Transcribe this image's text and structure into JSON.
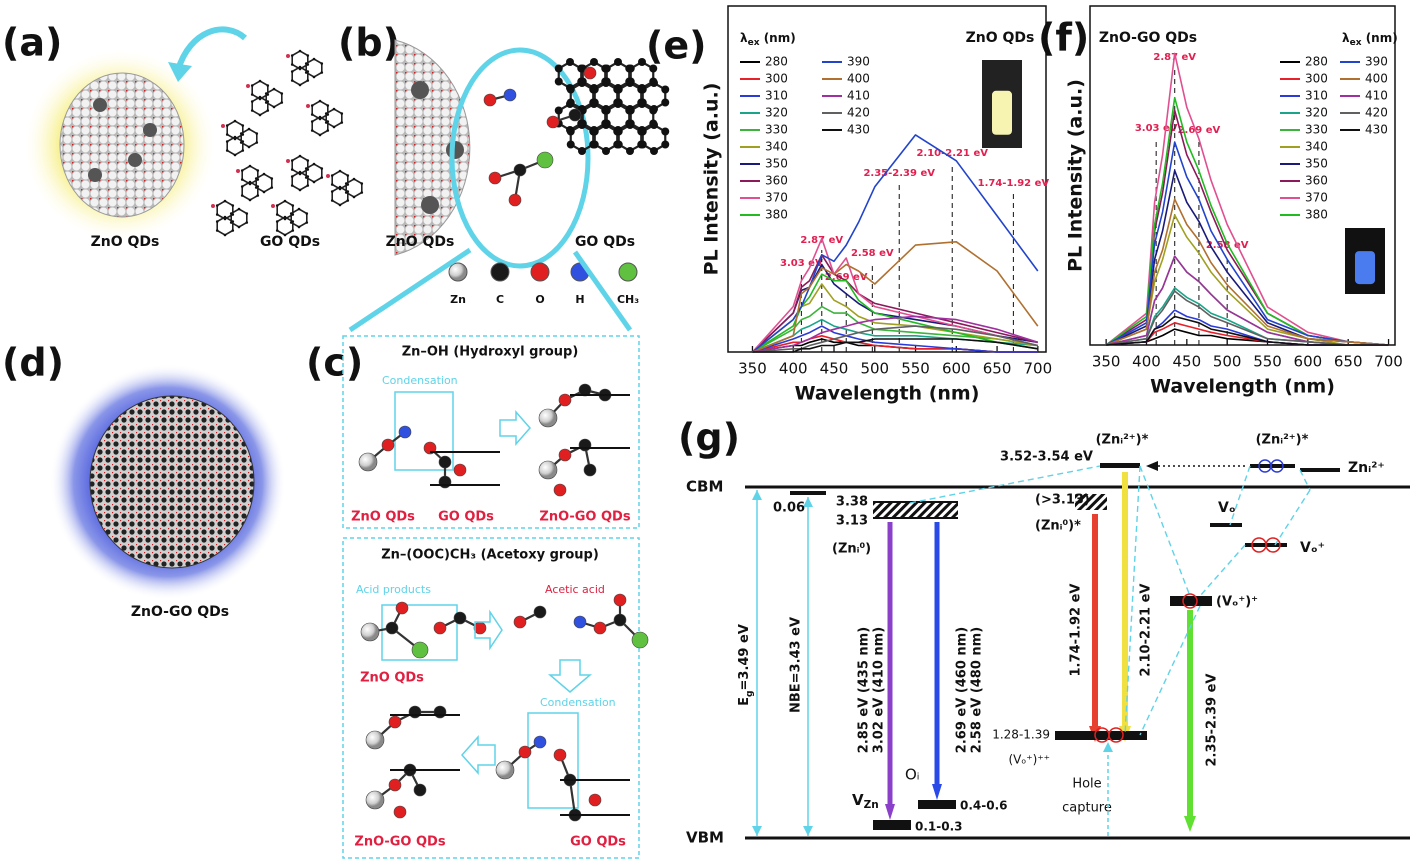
{
  "panels": {
    "a": "(a)",
    "b": "(b)",
    "c": "(c)",
    "d": "(d)",
    "e": "(e)",
    "f": "(f)",
    "g": "(g)"
  },
  "panel_a": {
    "left_caption": "ZnO QDs",
    "right_caption": "GO QDs"
  },
  "panel_b": {
    "left_caption": "ZnO QDs",
    "right_caption": "GO QDs",
    "legend": [
      "Zn",
      "C",
      "O",
      "H",
      "CH₃"
    ]
  },
  "panel_c": {
    "hydroxyl": {
      "title": "Zn–OH (Hydroxyl group)",
      "step": "Condensation",
      "labels": [
        "ZnO QDs",
        "GO QDs",
        "ZnO-GO QDs"
      ]
    },
    "acetoxy": {
      "title": "Zn–(OOC)CH₃ (Acetoxy group)",
      "products": "Acid products",
      "byproduct": "Acetic acid",
      "step": "Condensation",
      "labels": [
        "ZnO QDs",
        "ZnO-GO QDs",
        "GO QDs"
      ]
    }
  },
  "panel_d": {
    "caption": "ZnO-GO QDs"
  },
  "chart_data": [
    {
      "type": "line",
      "title": "ZnO QDs",
      "legend_title": {
        "main": "λ",
        "sub": "ex",
        "rest": " (nm)"
      },
      "x_label": "Wavelength (nm)",
      "y_label": "PL Intensity (a.u.)",
      "x": [
        350,
        400,
        410,
        420,
        435,
        450,
        465,
        480,
        500,
        550,
        600,
        650,
        700
      ],
      "xlim": [
        320,
        710
      ],
      "ylim": [
        0,
        100
      ],
      "xticks": [
        350,
        400,
        450,
        500,
        550,
        600,
        650,
        700
      ],
      "series": [
        {
          "name": "280",
          "color": "#000000",
          "values": [
            0,
            2,
            2,
            3,
            4,
            3,
            3,
            2,
            2,
            1,
            1,
            0,
            0
          ]
        },
        {
          "name": "300",
          "color": "#e8202a",
          "values": [
            0,
            3,
            3,
            4,
            5,
            4,
            3,
            3,
            2,
            1,
            1,
            0,
            0
          ]
        },
        {
          "name": "310",
          "color": "#2a3bd8",
          "values": [
            0,
            4,
            5,
            6,
            8,
            6,
            5,
            4,
            3,
            2,
            1,
            0,
            0
          ]
        },
        {
          "name": "320",
          "color": "#1aa58a",
          "values": [
            0,
            5,
            7,
            8,
            10,
            8,
            7,
            6,
            5,
            5,
            4,
            3,
            2
          ]
        },
        {
          "name": "330",
          "color": "#3cb43c",
          "values": [
            0,
            7,
            10,
            11,
            14,
            12,
            12,
            9,
            7,
            6,
            5,
            4,
            2
          ]
        },
        {
          "name": "340",
          "color": "#a0a020",
          "values": [
            0,
            10,
            14,
            15,
            21,
            16,
            14,
            11,
            9,
            8,
            6,
            4,
            2
          ]
        },
        {
          "name": "350",
          "color": "#1a1a7a",
          "values": [
            0,
            12,
            19,
            20,
            27,
            21,
            18,
            15,
            12,
            10,
            8,
            5,
            3
          ]
        },
        {
          "name": "360",
          "color": "#8a1a5a",
          "values": [
            0,
            12,
            20,
            22,
            30,
            24,
            22,
            18,
            15,
            12,
            9,
            6,
            3
          ]
        },
        {
          "name": "370",
          "color": "#e05090",
          "values": [
            0,
            14,
            22,
            26,
            35,
            24,
            29,
            18,
            14,
            11,
            8,
            5,
            2
          ]
        },
        {
          "name": "380",
          "color": "#22bb22",
          "values": [
            0,
            8,
            14,
            17,
            24,
            22,
            22,
            16,
            12,
            9,
            6,
            3,
            1
          ]
        },
        {
          "name": "390",
          "color": "#2244cc",
          "values": [
            0,
            10,
            14,
            20,
            30,
            28,
            33,
            40,
            51,
            67,
            59,
            42,
            25
          ]
        },
        {
          "name": "400",
          "color": "#b07030",
          "values": [
            0,
            5,
            18,
            20,
            26,
            24,
            27,
            25,
            21,
            33,
            34,
            25,
            8
          ]
        },
        {
          "name": "410",
          "color": "#a030a0",
          "values": [
            0,
            2,
            3,
            4,
            6,
            7,
            8,
            9,
            10,
            11,
            10,
            7,
            3
          ]
        },
        {
          "name": "420",
          "color": "#606060",
          "values": [
            0,
            1,
            1,
            2,
            3,
            4,
            5,
            6,
            7,
            8,
            7,
            5,
            2
          ]
        },
        {
          "name": "430",
          "color": "#101010",
          "values": [
            0,
            0,
            1,
            1,
            2,
            2,
            3,
            3,
            4,
            4,
            4,
            3,
            1
          ]
        }
      ],
      "markers": [
        {
          "x": 410,
          "label": "3.03 eV"
        },
        {
          "x": 435,
          "label": "2.87 eV"
        },
        {
          "x": 465,
          "label": "2.69 eV"
        },
        {
          "x": 497,
          "label": "2.58 eV"
        },
        {
          "x": 530,
          "label": "2.35-2.39 eV"
        },
        {
          "x": 595,
          "label": "2.10-2.21 eV"
        },
        {
          "x": 670,
          "label": "1.74-1.92 eV"
        }
      ]
    },
    {
      "type": "line",
      "title": "ZnO-GO QDs",
      "legend_title": {
        "main": "λ",
        "sub": "ex",
        "rest": " (nm)"
      },
      "x_label": "Wavelength (nm)",
      "y_label": "PL Intensity (a.u.)",
      "x": [
        350,
        400,
        410,
        420,
        435,
        450,
        465,
        480,
        500,
        550,
        600,
        650,
        700
      ],
      "xlim": [
        330,
        708
      ],
      "ylim": [
        0,
        100
      ],
      "xticks": [
        350,
        400,
        450,
        500,
        550,
        600,
        650,
        700
      ],
      "series": [
        {
          "name": "280",
          "color": "#000000",
          "values": [
            0,
            1,
            2,
            3,
            5,
            4,
            3,
            3,
            2,
            1,
            0,
            0,
            0
          ]
        },
        {
          "name": "300",
          "color": "#e8202a",
          "values": [
            0,
            1,
            4,
            5,
            7,
            6,
            5,
            4,
            3,
            1,
            0,
            0,
            0
          ]
        },
        {
          "name": "310",
          "color": "#2a3bd8",
          "values": [
            0,
            1,
            5,
            7,
            11,
            9,
            8,
            6,
            5,
            1,
            0,
            0,
            0
          ]
        },
        {
          "name": "320",
          "color": "#1aa58a",
          "values": [
            0,
            2,
            9,
            12,
            18,
            15,
            13,
            10,
            8,
            2,
            1,
            0,
            0
          ]
        },
        {
          "name": "330",
          "color": "#3cb43c",
          "values": [
            0,
            3,
            14,
            18,
            28,
            23,
            20,
            16,
            11,
            4,
            1,
            0,
            0
          ]
        },
        {
          "name": "340",
          "color": "#a0a020",
          "values": [
            0,
            5,
            20,
            27,
            41,
            34,
            29,
            23,
            17,
            5,
            2,
            0,
            0
          ]
        },
        {
          "name": "350",
          "color": "#1a1a7a",
          "values": [
            0,
            6,
            27,
            36,
            55,
            45,
            39,
            31,
            23,
            7,
            2,
            1,
            0
          ]
        },
        {
          "name": "360",
          "color": "#8a1a5a",
          "values": [
            0,
            8,
            36,
            48,
            74,
            60,
            52,
            42,
            30,
            10,
            3,
            1,
            0
          ]
        },
        {
          "name": "370",
          "color": "#e05090",
          "values": [
            0,
            10,
            45,
            60,
            92,
            75,
            65,
            52,
            38,
            12,
            4,
            1,
            0
          ]
        },
        {
          "name": "380",
          "color": "#22bb22",
          "values": [
            0,
            9,
            38,
            51,
            78,
            64,
            55,
            44,
            32,
            10,
            3,
            1,
            0
          ]
        },
        {
          "name": "390",
          "color": "#2244cc",
          "values": [
            0,
            7,
            32,
            42,
            64,
            53,
            46,
            36,
            27,
            8,
            3,
            1,
            0
          ]
        },
        {
          "name": "400",
          "color": "#b07030",
          "values": [
            0,
            5,
            23,
            30,
            46,
            38,
            33,
            26,
            19,
            6,
            2,
            1,
            0
          ]
        },
        {
          "name": "410",
          "color": "#a030a0",
          "values": [
            0,
            3,
            14,
            18,
            28,
            23,
            20,
            16,
            11,
            4,
            1,
            0,
            0
          ]
        },
        {
          "name": "420",
          "color": "#606060",
          "values": [
            0,
            2,
            8,
            11,
            17,
            14,
            12,
            9,
            7,
            2,
            1,
            0,
            0
          ]
        },
        {
          "name": "430",
          "color": "#101010",
          "values": [
            0,
            1,
            5,
            6,
            9,
            8,
            7,
            5,
            4,
            1,
            0,
            0,
            0
          ]
        }
      ],
      "markers": [
        {
          "x": 412,
          "label": "3.03 eV"
        },
        {
          "x": 435,
          "label": "2.87 eV"
        },
        {
          "x": 465,
          "label": "2.69 eV"
        },
        {
          "x": 500,
          "label": "2.58 eV"
        }
      ]
    }
  ],
  "panel_g": {
    "cbm": "CBM",
    "vbm": "VBM",
    "eg": {
      "main": "E",
      "sub": "g",
      "rest": "=3.49 eV"
    },
    "nbe": "NBE=3.43 eV",
    "shallow": "0.06",
    "zni_top": "3.38",
    "zni_bottom": "3.13",
    "zni": "(Znᵢ⁰)",
    "purple_transition": [
      "2.85 eV (435 nm)",
      "3.02 eV (410 nm)"
    ],
    "blue_transition": [
      "2.69 eV (460 nm)",
      "2.58 eV (480 nm)"
    ],
    "oi": "Oᵢ",
    "v_zn": {
      "main": "V",
      "sub": "Zn"
    },
    "oi_level": "0.4-0.6",
    "vzn_level": "0.1-0.3",
    "zni2_level": "3.52-3.54 eV",
    "zni2_star": "(Znᵢ²⁺)*",
    "zni2_star_right": "(Znᵢ²⁺)*",
    "zni2": "Znᵢ²⁺",
    "zni0_level": "(>3.13)",
    "zni0_star": "(Znᵢ⁰)*",
    "red_transition": "1.74-1.92 eV",
    "yellow_transition": "2.10-2.21 eV",
    "green_transition": "2.35-2.39 eV",
    "vo": "Vₒ",
    "vo_plus": "Vₒ⁺",
    "vo_plus_plus": "(Vₒ⁺)⁺",
    "deep_level": "1.28-1.39",
    "deep_state": "(Vₒ⁺)⁺⁺",
    "hole": "Hole",
    "capture": "capture"
  }
}
